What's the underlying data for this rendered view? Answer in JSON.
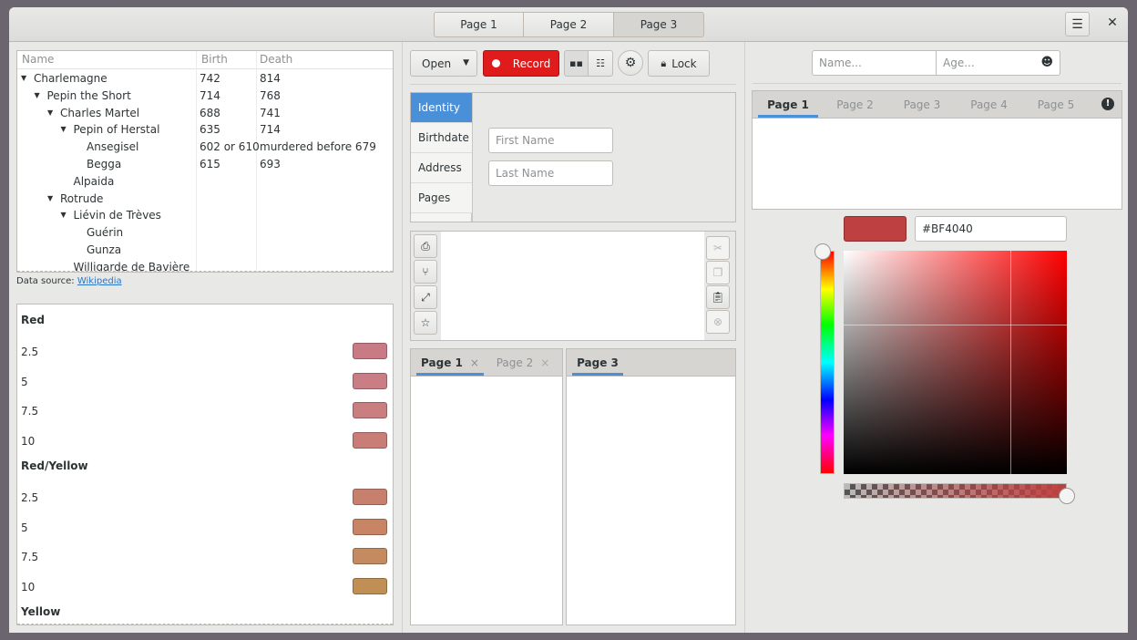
{
  "header": {
    "stack_pages": [
      "Page 1",
      "Page 2",
      "Page 3"
    ],
    "active_page": "Page 3",
    "menu_icon": "hamburger-menu-icon",
    "close_icon": "close-icon"
  },
  "tree": {
    "columns": [
      "Name",
      "Birth",
      "Death"
    ],
    "rows": [
      {
        "name": "Charlemagne",
        "birth": "742",
        "death": "814",
        "level": 0,
        "expanded": true
      },
      {
        "name": "Pepin the Short",
        "birth": "714",
        "death": "768",
        "level": 1,
        "expanded": true
      },
      {
        "name": "Charles Martel",
        "birth": "688",
        "death": "741",
        "level": 2,
        "expanded": true
      },
      {
        "name": "Pepin of Herstal",
        "birth": "635",
        "death": "714",
        "level": 3,
        "expanded": true
      },
      {
        "name": "Ansegisel",
        "birth": "602 or 610",
        "death": "murdered before 679",
        "level": 4
      },
      {
        "name": "Begga",
        "birth": "615",
        "death": "693",
        "level": 4
      },
      {
        "name": "Alpaida",
        "birth": "",
        "death": "",
        "level": 3
      },
      {
        "name": "Rotrude",
        "birth": "",
        "death": "",
        "level": 2,
        "expanded": true
      },
      {
        "name": "Liévin de Trèves",
        "birth": "",
        "death": "",
        "level": 3,
        "expanded": true
      },
      {
        "name": "Guérin",
        "birth": "",
        "death": "",
        "level": 4
      },
      {
        "name": "Gunza",
        "birth": "",
        "death": "",
        "level": 4
      },
      {
        "name": "Willigarde de Bavière",
        "birth": "",
        "death": "",
        "level": 3
      }
    ]
  },
  "data_source": {
    "label": "Data source:",
    "link": "Wikipedia"
  },
  "listbox": {
    "items": [
      {
        "type": "header",
        "text": "Red"
      },
      {
        "type": "row",
        "text": "2.5",
        "color": "#c87a85"
      },
      {
        "type": "row",
        "text": "5",
        "color": "#c97d85"
      },
      {
        "type": "row",
        "text": "7.5",
        "color": "#c97e80"
      },
      {
        "type": "row",
        "text": "10",
        "color": "#c87d76"
      },
      {
        "type": "header",
        "text": "Red/Yellow"
      },
      {
        "type": "row",
        "text": "2.5",
        "color": "#c7806e"
      },
      {
        "type": "row",
        "text": "5",
        "color": "#c78565"
      },
      {
        "type": "row",
        "text": "7.5",
        "color": "#c58b60"
      },
      {
        "type": "row",
        "text": "10",
        "color": "#bf8f55"
      },
      {
        "type": "header",
        "text": "Yellow"
      }
    ]
  },
  "toolbar": {
    "open": "Open",
    "record": "Record",
    "lock": "Lock",
    "record_color": "#e01b1b"
  },
  "side_tabs": {
    "tabs": [
      "Identity",
      "Birthdate",
      "Address",
      "Pages"
    ],
    "active": "Identity",
    "first_name_placeholder": "First Name",
    "last_name_placeholder": "Last Name"
  },
  "text_toolbar": {
    "left_icons": [
      "printer-icon",
      "network-icon",
      "fullscreen-icon",
      "star-icon"
    ],
    "right_icons": [
      "cut-icon",
      "copy-icon",
      "paste-icon",
      "clear-icon"
    ]
  },
  "notebook_left": {
    "tabs": [
      "Page 1",
      "Page 2"
    ],
    "active": "Page 1"
  },
  "notebook_right": {
    "tabs": [
      "Page 3"
    ],
    "active": "Page 3"
  },
  "entries": {
    "name_placeholder": "Name...",
    "age_placeholder": "Age...",
    "age_icon": "emoji-icon"
  },
  "notebook_top": {
    "tabs": [
      "Page 1",
      "Page 2",
      "Page 3",
      "Page 4",
      "Page 5"
    ],
    "active": "Page 1",
    "action_icon": "warning-icon"
  },
  "color": {
    "hex": "#BF4040",
    "swatch": "#bf4040",
    "hue": 0,
    "alpha": 1.0
  }
}
